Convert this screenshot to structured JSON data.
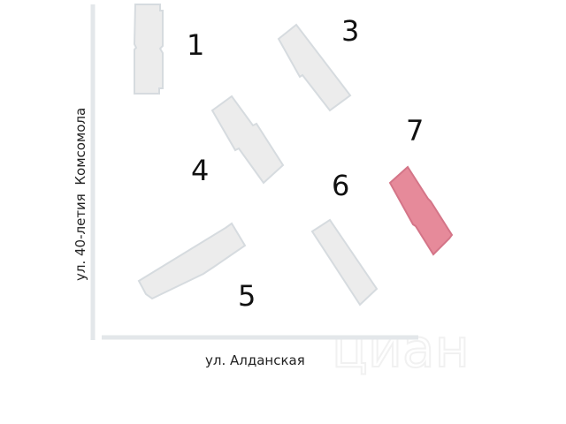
{
  "map": {
    "streets": {
      "vertical": "ул. 40-летия  Комсомола",
      "horizontal": "ул. Алданская"
    },
    "buildings": [
      {
        "label": "1",
        "highlighted": false
      },
      {
        "label": "3",
        "highlighted": false
      },
      {
        "label": "4",
        "highlighted": false
      },
      {
        "label": "5",
        "highlighted": false
      },
      {
        "label": "6",
        "highlighted": false
      },
      {
        "label": "7",
        "highlighted": true
      }
    ],
    "colors": {
      "building": "#ececec",
      "building_outline": "#d6dbdf",
      "highlight": "#e68a9a",
      "highlight_outline": "#d47588",
      "road": "#e3e7ea"
    },
    "watermark": "циан"
  }
}
